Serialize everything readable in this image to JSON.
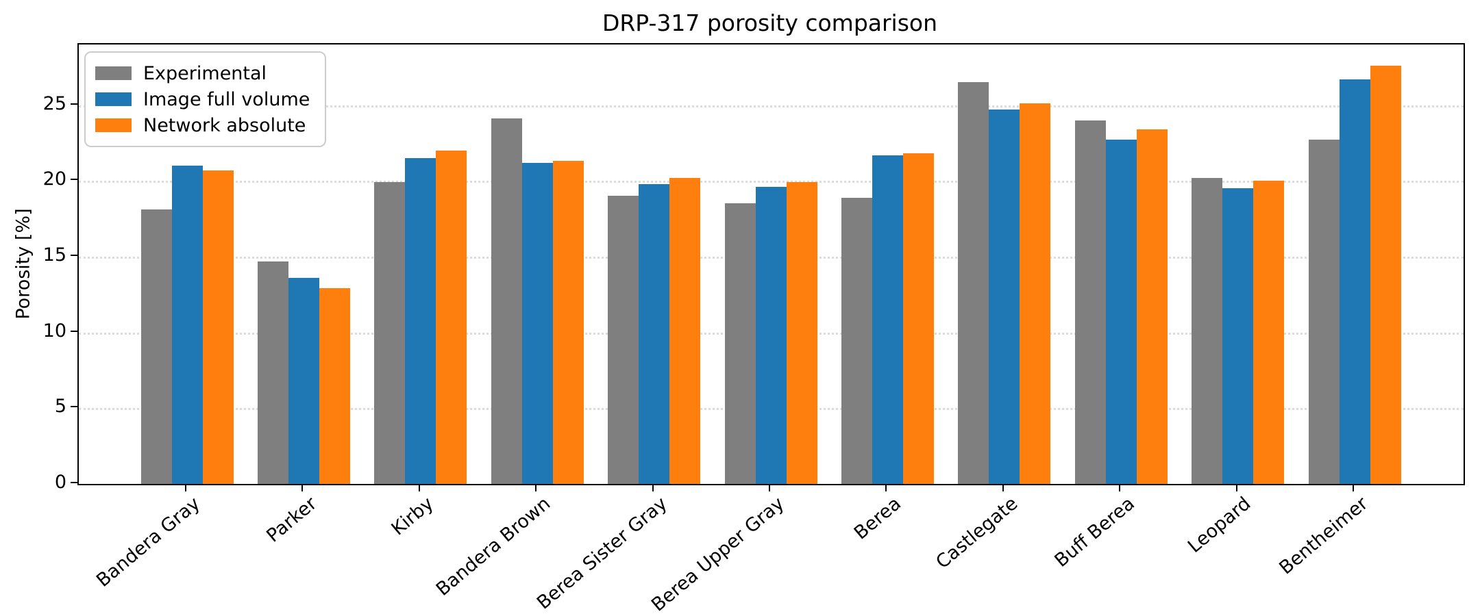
{
  "chart_data": {
    "type": "bar",
    "title": "DRP-317 porosity comparison",
    "xlabel": "",
    "ylabel": "Porosity [%]",
    "categories": [
      "Bandera Gray",
      "Parker",
      "Kirby",
      "Bandera Brown",
      "Berea Sister Gray",
      "Berea Upper Gray",
      "Berea",
      "Castlegate",
      "Buff Berea",
      "Leopard",
      "Bentheimer"
    ],
    "series": [
      {
        "name": "Experimental",
        "color": "#7f7f7f",
        "values": [
          18.1,
          14.7,
          19.9,
          24.1,
          19.0,
          18.5,
          18.9,
          26.5,
          24.0,
          20.2,
          22.7
        ]
      },
      {
        "name": "Image full volume",
        "color": "#1f77b4",
        "values": [
          21.0,
          13.6,
          21.5,
          21.2,
          19.8,
          19.6,
          21.7,
          24.7,
          22.7,
          19.5,
          26.7
        ]
      },
      {
        "name": "Network absolute",
        "color": "#ff7f0e",
        "values": [
          20.7,
          12.9,
          22.0,
          21.3,
          20.2,
          19.9,
          21.8,
          25.1,
          23.4,
          20.0,
          27.6
        ]
      }
    ],
    "yticks": [
      0,
      5,
      10,
      15,
      20,
      25
    ],
    "ylim": [
      0,
      29
    ],
    "grid": "horizontal dotted",
    "legend_position": "upper left",
    "style": {
      "gridline_color": "#dcdcdc",
      "spine_color": "#000000",
      "background": "#ffffff",
      "legend_border_color": "#cccccc"
    }
  }
}
